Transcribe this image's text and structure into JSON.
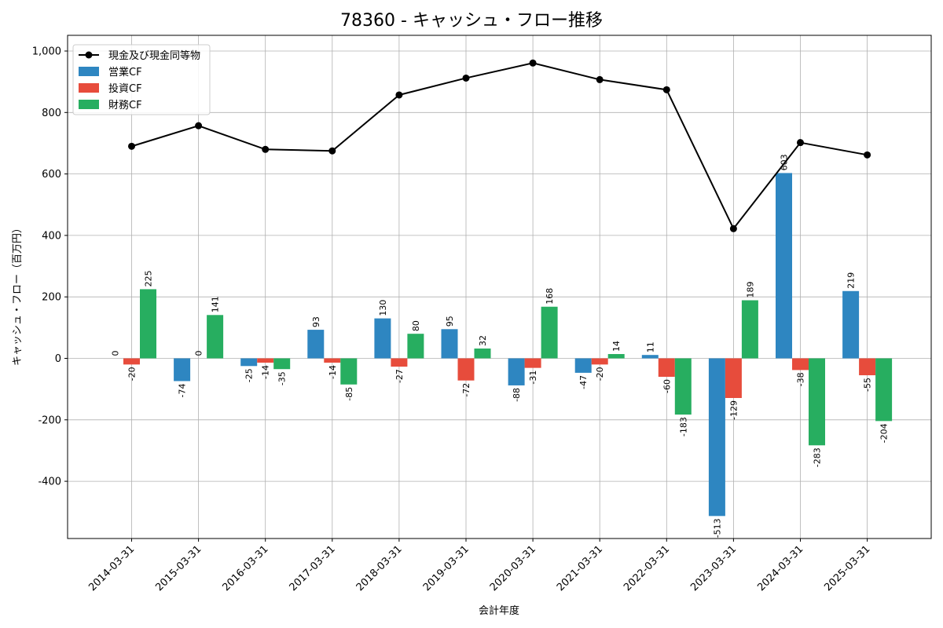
{
  "chart_data": {
    "type": "bar",
    "title": "78360 - キャッシュ・フロー推移",
    "xlabel": "会計年度",
    "ylabel": "キャッシュ・フロー（百万円）",
    "categories": [
      "2014-03-31",
      "2015-03-31",
      "2016-03-31",
      "2017-03-31",
      "2018-03-31",
      "2019-03-31",
      "2020-03-31",
      "2021-03-31",
      "2022-03-31",
      "2023-03-31",
      "2024-03-31",
      "2025-03-31"
    ],
    "ylim": [
      -590,
      1030
    ],
    "yticks": [
      -400,
      -200,
      0,
      200,
      400,
      600,
      800,
      1000
    ],
    "ytick_labels": [
      "-400",
      "-200",
      "0",
      "200",
      "400",
      "600",
      "800",
      "1,000"
    ],
    "grid": true,
    "legend_position": "top-left",
    "series": [
      {
        "name": "営業CF",
        "kind": "bar",
        "color": "#2e86c1",
        "values": [
          0,
          -74,
          -25,
          93,
          130,
          95,
          -88,
          -47,
          11,
          -513,
          603,
          219
        ],
        "labels": [
          "0",
          "-74",
          "-25",
          "93",
          "130",
          "95",
          "-88",
          "-47",
          "11",
          "-513",
          "603",
          "219"
        ]
      },
      {
        "name": "投資CF",
        "kind": "bar",
        "color": "#e74c3c",
        "values": [
          -20,
          0,
          -14,
          -14,
          -27,
          -72,
          -31,
          -20,
          -60,
          -129,
          -38,
          -55
        ],
        "labels": [
          "-20",
          "0",
          "-14",
          "-14",
          "-27",
          "-72",
          "-31",
          "-20",
          "-60",
          "-129",
          "-38",
          "-55"
        ]
      },
      {
        "name": "財務CF",
        "kind": "bar",
        "color": "#27ae60",
        "values": [
          225,
          141,
          -35,
          -85,
          80,
          32,
          168,
          14,
          -183,
          189,
          -283,
          -204
        ],
        "labels": [
          "225",
          "141",
          "-35",
          "-85",
          "80",
          "32",
          "168",
          "14",
          "-183",
          "189",
          "-283",
          "-204"
        ]
      },
      {
        "name": "現金及び現金同等物",
        "kind": "line",
        "color": "#000000",
        "values": [
          690,
          757,
          680,
          675,
          857,
          912,
          961,
          907,
          874,
          422,
          702,
          662
        ]
      }
    ]
  }
}
